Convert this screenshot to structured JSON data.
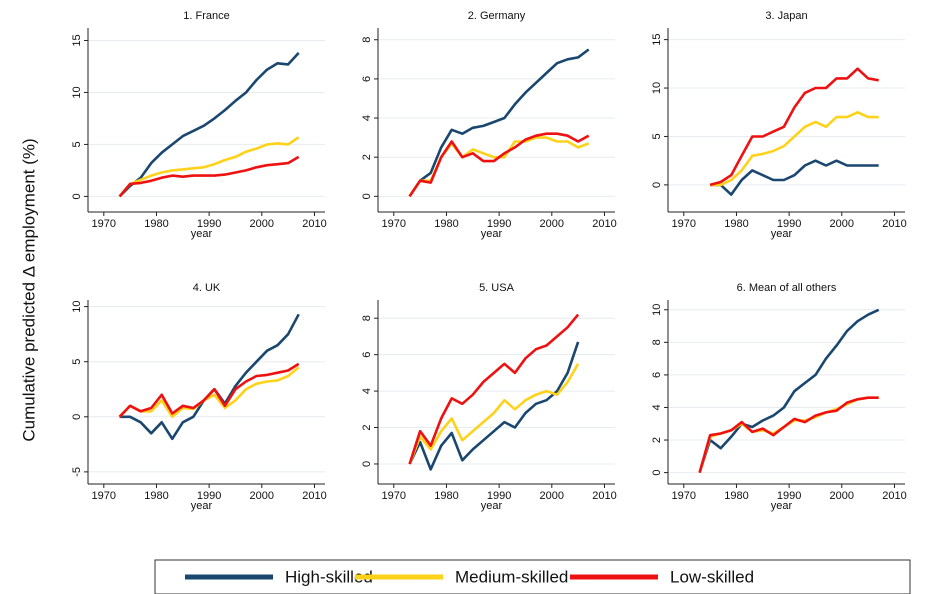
{
  "y_label": "Cumulative predicted Δ employment (%)",
  "chart_data": [
    {
      "type": "line",
      "title": "1. France",
      "xlabel": "year",
      "grid": true,
      "x": [
        1973,
        1975,
        1977,
        1979,
        1981,
        1983,
        1985,
        1987,
        1989,
        1991,
        1993,
        1995,
        1997,
        1999,
        2001,
        2003,
        2005,
        2007
      ],
      "xlim": [
        1967,
        2012
      ],
      "xticks": [
        1970,
        1980,
        1990,
        2000,
        2010
      ],
      "ylim": [
        -1.5,
        16.2
      ],
      "yticks": [
        0,
        5,
        10,
        15
      ],
      "series": [
        {
          "name": "High-skilled",
          "color": "#1a476f",
          "values": [
            0,
            1,
            1.8,
            3.2,
            4.2,
            5,
            5.8,
            6.3,
            6.8,
            7.5,
            8.3,
            9.2,
            10,
            11.2,
            12.2,
            12.8,
            12.7,
            13.8
          ]
        },
        {
          "name": "Medium-skilled",
          "color": "#ffd21a",
          "values": [
            0,
            1.2,
            1.6,
            2,
            2.3,
            2.5,
            2.6,
            2.7,
            2.8,
            3.1,
            3.5,
            3.8,
            4.3,
            4.6,
            5,
            5.1,
            5,
            5.7
          ]
        },
        {
          "name": "Low-skilled",
          "color": "#ee1111",
          "values": [
            0,
            1.2,
            1.3,
            1.5,
            1.8,
            2,
            1.9,
            2,
            2,
            2,
            2.1,
            2.3,
            2.5,
            2.8,
            3,
            3.1,
            3.2,
            3.8
          ]
        }
      ]
    },
    {
      "type": "line",
      "title": "2. Germany",
      "xlabel": "year",
      "grid": true,
      "x": [
        1973,
        1975,
        1977,
        1979,
        1981,
        1983,
        1985,
        1987,
        1989,
        1991,
        1993,
        1995,
        1997,
        1999,
        2001,
        2003,
        2005,
        2007
      ],
      "xlim": [
        1967,
        2012
      ],
      "xticks": [
        1970,
        1980,
        1990,
        2000,
        2010
      ],
      "ylim": [
        -0.8,
        8.6
      ],
      "yticks": [
        0,
        2,
        4,
        6,
        8
      ],
      "series": [
        {
          "name": "High-skilled",
          "color": "#1a476f",
          "values": [
            0,
            0.8,
            1.2,
            2.5,
            3.4,
            3.2,
            3.5,
            3.6,
            3.8,
            4,
            4.7,
            5.3,
            5.8,
            6.3,
            6.8,
            7,
            7.1,
            7.5
          ]
        },
        {
          "name": "Medium-skilled",
          "color": "#ffd21a",
          "values": [
            0,
            0.8,
            0.8,
            2,
            2.7,
            2,
            2.4,
            2.2,
            2,
            2,
            2.8,
            2.8,
            3,
            3,
            2.8,
            2.8,
            2.5,
            2.7
          ]
        },
        {
          "name": "Low-skilled",
          "color": "#ee1111",
          "values": [
            0,
            0.8,
            0.7,
            2,
            2.8,
            2,
            2.2,
            1.8,
            1.8,
            2.2,
            2.5,
            2.9,
            3.1,
            3.2,
            3.2,
            3.1,
            2.8,
            3.1
          ]
        }
      ]
    },
    {
      "type": "line",
      "title": "3. Japan",
      "xlabel": "year",
      "grid": true,
      "x": [
        1973,
        1975,
        1977,
        1979,
        1981,
        1983,
        1985,
        1987,
        1989,
        1991,
        1993,
        1995,
        1997,
        1999,
        2001,
        2003,
        2005,
        2007
      ],
      "xlim": [
        1967,
        2012
      ],
      "xticks": [
        1970,
        1980,
        1990,
        2000,
        2010
      ],
      "ylim": [
        -2.8,
        16.2
      ],
      "yticks": [
        0,
        5,
        10,
        15
      ],
      "series": [
        {
          "name": "High-skilled",
          "color": "#1a476f",
          "values": [
            null,
            0,
            0,
            -1,
            0.5,
            1.5,
            1,
            0.5,
            0.5,
            1,
            2,
            2.5,
            2,
            2.5,
            2,
            2,
            2,
            2
          ]
        },
        {
          "name": "Medium-skilled",
          "color": "#ffd21a",
          "values": [
            null,
            0,
            0,
            0.5,
            1.5,
            3,
            3.2,
            3.5,
            4,
            5,
            6,
            6.5,
            6,
            7,
            7,
            7.5,
            7,
            7
          ]
        },
        {
          "name": "Low-skilled",
          "color": "#ee1111",
          "values": [
            null,
            0,
            0.3,
            1,
            3,
            5,
            5,
            5.5,
            6,
            8,
            9.5,
            10,
            10,
            11,
            11,
            12,
            11,
            10.8
          ]
        }
      ]
    },
    {
      "type": "line",
      "title": "4. UK",
      "xlabel": "year",
      "grid": true,
      "x": [
        1973,
        1975,
        1977,
        1979,
        1981,
        1983,
        1985,
        1987,
        1989,
        1991,
        1993,
        1995,
        1997,
        1999,
        2001,
        2003,
        2005,
        2007
      ],
      "xlim": [
        1967,
        2012
      ],
      "xticks": [
        1970,
        1980,
        1990,
        2000,
        2010
      ],
      "ylim": [
        -6.1,
        10.6
      ],
      "yticks": [
        -5,
        0,
        5,
        10
      ],
      "series": [
        {
          "name": "High-skilled",
          "color": "#1a476f",
          "values": [
            0,
            0,
            -0.5,
            -1.5,
            -0.5,
            -2,
            -0.5,
            0,
            1.5,
            2.5,
            1.2,
            2.8,
            4,
            5,
            6,
            6.5,
            7.5,
            9.3
          ]
        },
        {
          "name": "Medium-skilled",
          "color": "#ffd21a",
          "values": [
            0,
            1,
            0.5,
            0.5,
            1.5,
            0,
            0.8,
            0.7,
            1.5,
            2,
            0.8,
            1.5,
            2.5,
            3,
            3.2,
            3.3,
            3.7,
            4.5
          ]
        },
        {
          "name": "Low-skilled",
          "color": "#ee1111",
          "values": [
            0,
            1,
            0.5,
            0.8,
            2,
            0.3,
            1,
            0.8,
            1.5,
            2.5,
            1,
            2.5,
            3.2,
            3.7,
            3.8,
            4,
            4.2,
            4.8
          ]
        }
      ]
    },
    {
      "type": "line",
      "title": "5. USA",
      "xlabel": "year",
      "grid": true,
      "x": [
        1973,
        1975,
        1977,
        1979,
        1981,
        1983,
        1985,
        1987,
        1989,
        1991,
        1993,
        1995,
        1997,
        1999,
        2001,
        2003,
        2005,
        2007
      ],
      "xlim": [
        1967,
        2012
      ],
      "xticks": [
        1970,
        1980,
        1990,
        2000,
        2010
      ],
      "ylim": [
        -1.1,
        9
      ],
      "yticks": [
        0,
        2,
        4,
        6,
        8
      ],
      "series": [
        {
          "name": "High-skilled",
          "color": "#1a476f",
          "values": [
            0,
            1.2,
            -0.3,
            1,
            1.7,
            0.2,
            0.8,
            1.3,
            1.8,
            2.3,
            2,
            2.8,
            3.3,
            3.5,
            4,
            5,
            6.7,
            null
          ]
        },
        {
          "name": "Medium-skilled",
          "color": "#ffd21a",
          "values": [
            0,
            1.5,
            0.8,
            1.8,
            2.5,
            1.3,
            1.8,
            2.3,
            2.8,
            3.5,
            3,
            3.5,
            3.8,
            4,
            3.8,
            4.5,
            5.5,
            null
          ]
        },
        {
          "name": "Low-skilled",
          "color": "#ee1111",
          "values": [
            0,
            1.8,
            1,
            2.5,
            3.6,
            3.3,
            3.8,
            4.5,
            5,
            5.5,
            5,
            5.8,
            6.3,
            6.5,
            7,
            7.5,
            8.2,
            null
          ]
        }
      ]
    },
    {
      "type": "line",
      "title": "6. Mean of all others",
      "xlabel": "year",
      "grid": true,
      "x": [
        1973,
        1975,
        1977,
        1979,
        1981,
        1983,
        1985,
        1987,
        1989,
        1991,
        1993,
        1995,
        1997,
        1999,
        2001,
        2003,
        2005,
        2007
      ],
      "xlim": [
        1967,
        2012
      ],
      "xticks": [
        1970,
        1980,
        1990,
        2000,
        2010
      ],
      "ylim": [
        -0.7,
        10.6
      ],
      "yticks": [
        0,
        2,
        4,
        6,
        8,
        10
      ],
      "series": [
        {
          "name": "High-skilled",
          "color": "#1a476f",
          "values": [
            0,
            2,
            1.5,
            2.2,
            3,
            2.8,
            3.2,
            3.5,
            4,
            5,
            5.5,
            6,
            7,
            7.8,
            8.7,
            9.3,
            9.7,
            10
          ]
        },
        {
          "name": "Medium-skilled",
          "color": "#ffd21a",
          "values": [
            0,
            2.2,
            2.4,
            2.6,
            3,
            2.5,
            2.6,
            2.4,
            2.8,
            3.2,
            3.2,
            3.4,
            3.7,
            3.9,
            4.2,
            4.5,
            4.6,
            4.6
          ]
        },
        {
          "name": "Low-skilled",
          "color": "#ee1111",
          "values": [
            0,
            2.3,
            2.4,
            2.6,
            3.1,
            2.5,
            2.7,
            2.3,
            2.8,
            3.3,
            3.1,
            3.5,
            3.7,
            3.8,
            4.3,
            4.5,
            4.6,
            4.6
          ]
        }
      ]
    }
  ]
}
